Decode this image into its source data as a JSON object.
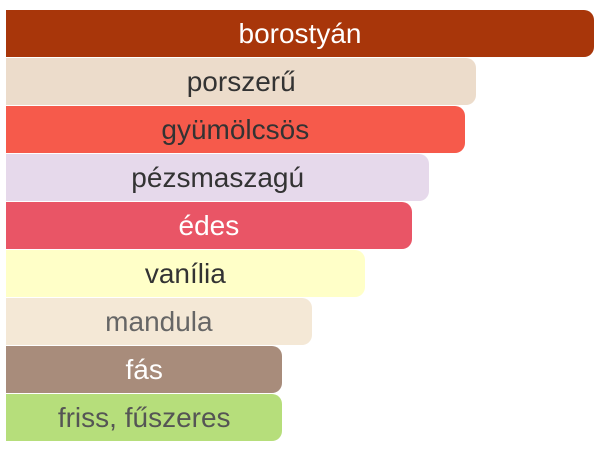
{
  "chart_data": {
    "type": "bar",
    "orientation": "horizontal",
    "categories": [
      "borostyán",
      "porszerű",
      "gyümölcsös",
      "pézsmaszagú",
      "édes",
      "vanília",
      "mandula",
      "fás",
      "friss, fűszeres"
    ],
    "values": [
      100,
      80,
      78,
      72,
      69,
      61,
      52,
      47,
      47
    ],
    "xlim": [
      0,
      100
    ],
    "grid": false,
    "legend": "none",
    "colors": [
      "#a8360a",
      "#ecdccb",
      "#f65a4b",
      "#e6d9eb",
      "#e95566",
      "#ffffc8",
      "#f4e8d6",
      "#a88c7b",
      "#b6de7b"
    ],
    "label_colors": [
      "#ffffff",
      "#333333",
      "#333333",
      "#333333",
      "#ffffff",
      "#333333",
      "#666666",
      "#ffffff",
      "#555555"
    ]
  }
}
